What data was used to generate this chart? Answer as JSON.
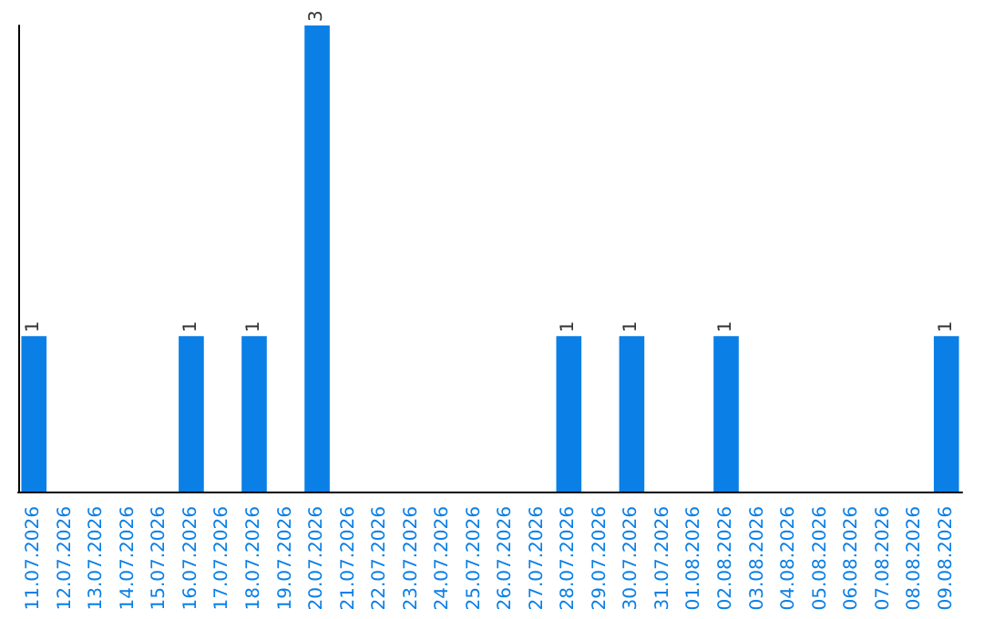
{
  "chart_data": {
    "type": "bar",
    "categories": [
      "11.07.2026",
      "12.07.2026",
      "13.07.2026",
      "14.07.2026",
      "15.07.2026",
      "16.07.2026",
      "17.07.2026",
      "18.07.2026",
      "19.07.2026",
      "20.07.2026",
      "21.07.2026",
      "22.07.2026",
      "23.07.2026",
      "24.07.2026",
      "25.07.2026",
      "26.07.2026",
      "27.07.2026",
      "28.07.2026",
      "29.07.2026",
      "30.07.2026",
      "31.07.2026",
      "01.08.2026",
      "02.08.2026",
      "03.08.2026",
      "04.08.2026",
      "05.08.2026",
      "06.08.2026",
      "07.08.2026",
      "08.08.2026",
      "09.08.2026"
    ],
    "values": [
      1,
      0,
      0,
      0,
      0,
      1,
      0,
      1,
      0,
      3,
      0,
      0,
      0,
      0,
      0,
      0,
      0,
      1,
      0,
      1,
      0,
      0,
      1,
      0,
      0,
      0,
      0,
      0,
      0,
      1
    ],
    "value_labels": [
      "1",
      null,
      null,
      null,
      null,
      "1",
      null,
      "1",
      null,
      "3",
      null,
      null,
      null,
      null,
      null,
      null,
      null,
      "1",
      null,
      "1",
      null,
      null,
      "1",
      null,
      null,
      null,
      null,
      null,
      null,
      "1"
    ],
    "color": "#0a7fe6",
    "grid": false,
    "tick_labels": "x"
  }
}
